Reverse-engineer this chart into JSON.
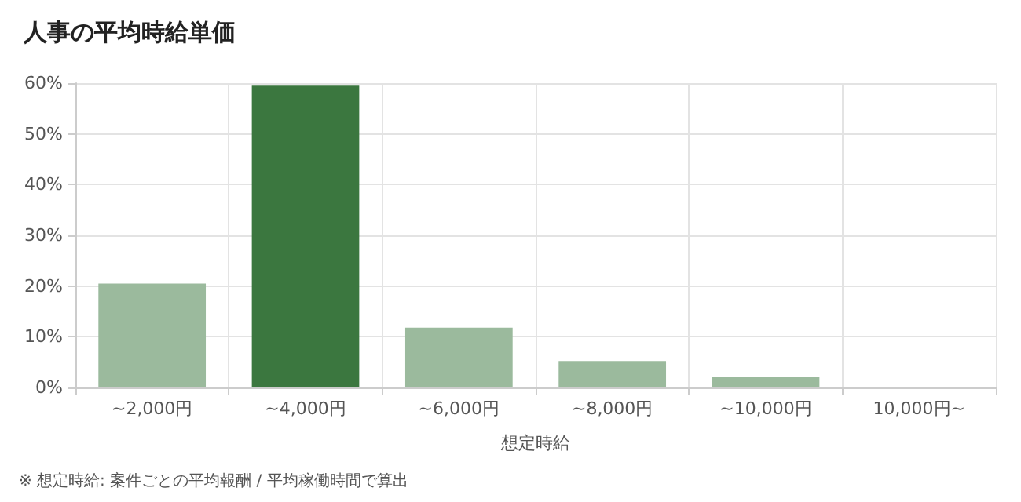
{
  "chart_data": {
    "type": "bar",
    "title": "人事の平均時給単価",
    "xlabel": "想定時給",
    "categories": [
      "~2,000円",
      "~4,000円",
      "~6,000円",
      "~8,000円",
      "~10,000円",
      "10,000円~"
    ],
    "values": [
      20.5,
      59.5,
      11.8,
      5.2,
      2.0,
      0
    ],
    "colors": [
      "#9bba9d",
      "#3b773f",
      "#9bba9d",
      "#9bba9d",
      "#9bba9d",
      "#9bba9d"
    ],
    "ylim": [
      0,
      60
    ],
    "yticks": [
      {
        "value": 0,
        "label": "0%"
      },
      {
        "value": 10,
        "label": "10%"
      },
      {
        "value": 20,
        "label": "20%"
      },
      {
        "value": 30,
        "label": "30%"
      },
      {
        "value": 40,
        "label": "40%"
      },
      {
        "value": 50,
        "label": "50%"
      },
      {
        "value": 60,
        "label": "60%"
      }
    ],
    "grid": true,
    "annotations": [
      "※ 想定時給: 案件ごとの平均報酬 / 平均稼働時間で算出"
    ]
  }
}
